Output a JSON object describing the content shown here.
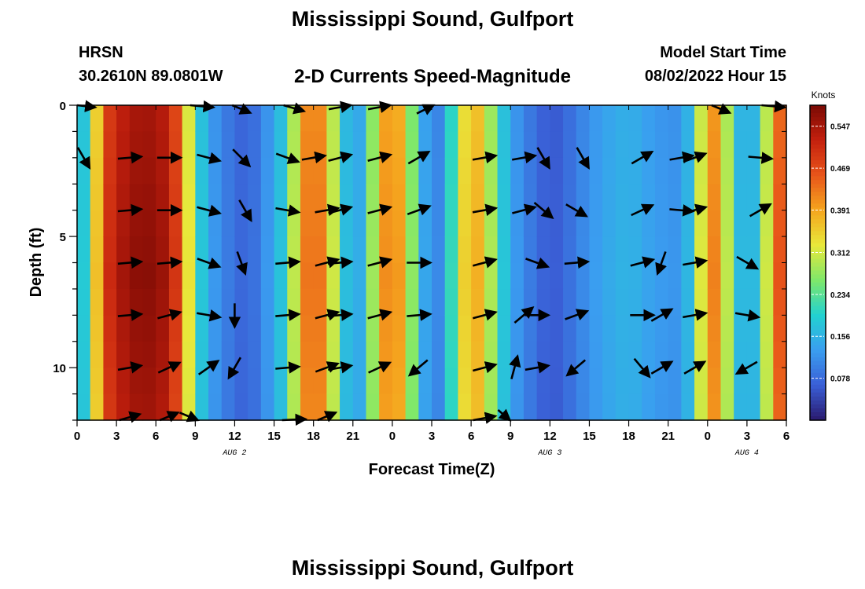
{
  "header": {
    "title": "Mississippi Sound, Gulfport",
    "station": "HRSN",
    "coordinates": "30.2610N  89.0801W",
    "product": "2-D Currents Speed-Magnitude",
    "model_start_label": "Model Start Time",
    "model_start_value": "08/02/2022 Hour 15",
    "bottom_title": "Mississippi Sound, Gulfport"
  },
  "chart_data": {
    "type": "heatmap",
    "title": "2-D Currents Speed-Magnitude",
    "xlabel": "Forecast Time(Z)",
    "ylabel": "Depth (ft)",
    "x_range_hours": [
      0,
      54
    ],
    "ylim": [
      0,
      12
    ],
    "y_inverted": true,
    "x_tick_labels": [
      "0",
      "3",
      "6",
      "9",
      "12",
      "15",
      "18",
      "21",
      "0",
      "3",
      "6",
      "9",
      "12",
      "15",
      "18",
      "21",
      "0",
      "3",
      "6"
    ],
    "y_tick_values": [
      0,
      5,
      10
    ],
    "y_tick_labels": [
      "0",
      "5",
      "10"
    ],
    "date_labels": [
      {
        "label": "AUG 2",
        "hour": 12
      },
      {
        "label": "AUG 3",
        "hour": 36
      },
      {
        "label": "AUG 4",
        "hour": 51
      }
    ],
    "colorbar": {
      "title": "Knots",
      "range": [
        0.0,
        0.586
      ],
      "ticks": [
        0.547,
        0.469,
        0.391,
        0.312,
        0.234,
        0.156,
        0.078
      ],
      "tick_labels": [
        "0.547",
        "0.469",
        "0.391",
        "0.312",
        "0.234",
        "0.156",
        "0.078"
      ]
    },
    "speed_profile": [
      {
        "hour": 0,
        "value": 0.12
      },
      {
        "hour": 1,
        "value": 0.25
      },
      {
        "hour": 2,
        "value": 0.48
      },
      {
        "hour": 3,
        "value": 0.54
      },
      {
        "hour": 5,
        "value": 0.58
      },
      {
        "hour": 7,
        "value": 0.55
      },
      {
        "hour": 8,
        "value": 0.44
      },
      {
        "hour": 9,
        "value": 0.22
      },
      {
        "hour": 10,
        "value": 0.14
      },
      {
        "hour": 12,
        "value": 0.08
      },
      {
        "hour": 13,
        "value": 0.07
      },
      {
        "hour": 14,
        "value": 0.1
      },
      {
        "hour": 16,
        "value": 0.2
      },
      {
        "hour": 17,
        "value": 0.4
      },
      {
        "hour": 18,
        "value": 0.46
      },
      {
        "hour": 19,
        "value": 0.4
      },
      {
        "hour": 20,
        "value": 0.22
      },
      {
        "hour": 21,
        "value": 0.12
      },
      {
        "hour": 22,
        "value": 0.18
      },
      {
        "hour": 23,
        "value": 0.38
      },
      {
        "hour": 24,
        "value": 0.44
      },
      {
        "hour": 25,
        "value": 0.36
      },
      {
        "hour": 26,
        "value": 0.18
      },
      {
        "hour": 27,
        "value": 0.1
      },
      {
        "hour": 28,
        "value": 0.12
      },
      {
        "hour": 29,
        "value": 0.3
      },
      {
        "hour": 30,
        "value": 0.4
      },
      {
        "hour": 31,
        "value": 0.36
      },
      {
        "hour": 32,
        "value": 0.22
      },
      {
        "hour": 33,
        "value": 0.14
      },
      {
        "hour": 35,
        "value": 0.08
      },
      {
        "hour": 36,
        "value": 0.06
      },
      {
        "hour": 37,
        "value": 0.07
      },
      {
        "hour": 38,
        "value": 0.1
      },
      {
        "hour": 40,
        "value": 0.14
      },
      {
        "hour": 42,
        "value": 0.16
      },
      {
        "hour": 44,
        "value": 0.13
      },
      {
        "hour": 46,
        "value": 0.12
      },
      {
        "hour": 47,
        "value": 0.2
      },
      {
        "hour": 48,
        "value": 0.44
      },
      {
        "hour": 49,
        "value": 0.4
      },
      {
        "hour": 50,
        "value": 0.2
      },
      {
        "hour": 51,
        "value": 0.13
      },
      {
        "hour": 52,
        "value": 0.2
      },
      {
        "hour": 53,
        "value": 0.42
      },
      {
        "hour": 54,
        "value": 0.5
      }
    ],
    "color_stops": [
      "#2a1a6e",
      "#3a5fd6",
      "#3a9ef0",
      "#22d2d0",
      "#7fe86a",
      "#e8e83a",
      "#f5a51e",
      "#e8551a",
      "#c4200e",
      "#7a0a04"
    ],
    "vector_depths_ft": [
      0,
      2,
      4,
      6,
      8,
      10,
      12
    ],
    "vectors": [
      {
        "hour": 0.5,
        "depth": 0,
        "angle": 10
      },
      {
        "hour": 9.5,
        "depth": 0,
        "angle": 10
      },
      {
        "hour": 12.5,
        "depth": 0,
        "angle": 40
      },
      {
        "hour": 16.5,
        "depth": 0,
        "angle": 30
      },
      {
        "hour": 20,
        "depth": 0,
        "angle": -20
      },
      {
        "hour": 23,
        "depth": 0,
        "angle": -20
      },
      {
        "hour": 26.5,
        "depth": 0,
        "angle": -45
      },
      {
        "hour": 49,
        "depth": 0,
        "angle": 40
      },
      {
        "hour": 53,
        "depth": 0,
        "angle": 10
      },
      {
        "hour": 0.5,
        "depth": 2,
        "angle": 60
      },
      {
        "hour": 4,
        "depth": 2,
        "angle": -5
      },
      {
        "hour": 7,
        "depth": 2,
        "angle": 0
      },
      {
        "hour": 10,
        "depth": 2,
        "angle": 15
      },
      {
        "hour": 12.5,
        "depth": 2,
        "angle": 45
      },
      {
        "hour": 16,
        "depth": 2,
        "angle": 20
      },
      {
        "hour": 18,
        "depth": 2,
        "angle": -10
      },
      {
        "hour": 20,
        "depth": 2,
        "angle": -15
      },
      {
        "hour": 23,
        "depth": 2,
        "angle": -15
      },
      {
        "hour": 26,
        "depth": 2,
        "angle": -30
      },
      {
        "hour": 31,
        "depth": 2,
        "angle": -10
      },
      {
        "hour": 34,
        "depth": 2,
        "angle": -10
      },
      {
        "hour": 35.5,
        "depth": 2,
        "angle": 60
      },
      {
        "hour": 38.5,
        "depth": 2,
        "angle": 60
      },
      {
        "hour": 43,
        "depth": 2,
        "angle": -30
      },
      {
        "hour": 46,
        "depth": 2,
        "angle": -10
      },
      {
        "hour": 47,
        "depth": 2,
        "angle": -20
      },
      {
        "hour": 52,
        "depth": 2,
        "angle": 5
      },
      {
        "hour": 4,
        "depth": 4,
        "angle": -5
      },
      {
        "hour": 7,
        "depth": 4,
        "angle": 0
      },
      {
        "hour": 10,
        "depth": 4,
        "angle": 15
      },
      {
        "hour": 12.8,
        "depth": 4,
        "angle": 60
      },
      {
        "hour": 16,
        "depth": 4,
        "angle": 10
      },
      {
        "hour": 19,
        "depth": 4,
        "angle": -10
      },
      {
        "hour": 20,
        "depth": 4,
        "angle": -15
      },
      {
        "hour": 23,
        "depth": 4,
        "angle": -15
      },
      {
        "hour": 26,
        "depth": 4,
        "angle": -20
      },
      {
        "hour": 31,
        "depth": 4,
        "angle": -10
      },
      {
        "hour": 34,
        "depth": 4,
        "angle": -15
      },
      {
        "hour": 35.5,
        "depth": 4,
        "angle": 40
      },
      {
        "hour": 38,
        "depth": 4,
        "angle": 30
      },
      {
        "hour": 43,
        "depth": 4,
        "angle": -25
      },
      {
        "hour": 46,
        "depth": 4,
        "angle": 5
      },
      {
        "hour": 47,
        "depth": 4,
        "angle": -15
      },
      {
        "hour": 52,
        "depth": 4,
        "angle": -30
      },
      {
        "hour": 4,
        "depth": 6,
        "angle": -5
      },
      {
        "hour": 7,
        "depth": 6,
        "angle": -5
      },
      {
        "hour": 10,
        "depth": 6,
        "angle": 20
      },
      {
        "hour": 12.5,
        "depth": 6,
        "angle": 70
      },
      {
        "hour": 16,
        "depth": 6,
        "angle": -5
      },
      {
        "hour": 19,
        "depth": 6,
        "angle": -15
      },
      {
        "hour": 20,
        "depth": 6,
        "angle": -5
      },
      {
        "hour": 23,
        "depth": 6,
        "angle": -15
      },
      {
        "hour": 26,
        "depth": 6,
        "angle": 0
      },
      {
        "hour": 31,
        "depth": 6,
        "angle": -15
      },
      {
        "hour": 35,
        "depth": 6,
        "angle": 20
      },
      {
        "hour": 38,
        "depth": 6,
        "angle": -5
      },
      {
        "hour": 43,
        "depth": 6,
        "angle": -15
      },
      {
        "hour": 44.5,
        "depth": 6,
        "angle": 110
      },
      {
        "hour": 47,
        "depth": 6,
        "angle": -10
      },
      {
        "hour": 51,
        "depth": 6,
        "angle": 30
      },
      {
        "hour": 4,
        "depth": 8,
        "angle": -5
      },
      {
        "hour": 7,
        "depth": 8,
        "angle": -15
      },
      {
        "hour": 10,
        "depth": 8,
        "angle": 10
      },
      {
        "hour": 12,
        "depth": 8,
        "angle": 90
      },
      {
        "hour": 16,
        "depth": 8,
        "angle": -5
      },
      {
        "hour": 19,
        "depth": 8,
        "angle": -15
      },
      {
        "hour": 20,
        "depth": 8,
        "angle": -5
      },
      {
        "hour": 23,
        "depth": 8,
        "angle": -15
      },
      {
        "hour": 26,
        "depth": 8,
        "angle": -5
      },
      {
        "hour": 31,
        "depth": 8,
        "angle": -15
      },
      {
        "hour": 34,
        "depth": 8,
        "angle": -40
      },
      {
        "hour": 35,
        "depth": 8,
        "angle": 0
      },
      {
        "hour": 38,
        "depth": 8,
        "angle": -20
      },
      {
        "hour": 43,
        "depth": 8,
        "angle": 0
      },
      {
        "hour": 44.5,
        "depth": 8,
        "angle": -30
      },
      {
        "hour": 47,
        "depth": 8,
        "angle": -10
      },
      {
        "hour": 51,
        "depth": 8,
        "angle": 10
      },
      {
        "hour": 4,
        "depth": 10,
        "angle": -10
      },
      {
        "hour": 7,
        "depth": 10,
        "angle": -25
      },
      {
        "hour": 10,
        "depth": 10,
        "angle": -35
      },
      {
        "hour": 12,
        "depth": 10,
        "angle": 120
      },
      {
        "hour": 16,
        "depth": 10,
        "angle": -5
      },
      {
        "hour": 19,
        "depth": 10,
        "angle": -20
      },
      {
        "hour": 20,
        "depth": 10,
        "angle": -10
      },
      {
        "hour": 23,
        "depth": 10,
        "angle": -25
      },
      {
        "hour": 26,
        "depth": 10,
        "angle": 140
      },
      {
        "hour": 31,
        "depth": 10,
        "angle": -15
      },
      {
        "hour": 33.3,
        "depth": 10,
        "angle": -75
      },
      {
        "hour": 35,
        "depth": 10,
        "angle": -10
      },
      {
        "hour": 38,
        "depth": 10,
        "angle": 140
      },
      {
        "hour": 43,
        "depth": 10,
        "angle": 50
      },
      {
        "hour": 44.5,
        "depth": 10,
        "angle": -30
      },
      {
        "hour": 47,
        "depth": 10,
        "angle": -30
      },
      {
        "hour": 51,
        "depth": 10,
        "angle": 150
      },
      {
        "hour": 4,
        "depth": 12,
        "angle": -30
      },
      {
        "hour": 7,
        "depth": 12,
        "angle": -40
      },
      {
        "hour": 8.5,
        "depth": 12,
        "angle": 40
      },
      {
        "hour": 16.5,
        "depth": 12,
        "angle": -5
      },
      {
        "hour": 19,
        "depth": 12,
        "angle": -40
      },
      {
        "hour": 31,
        "depth": 12,
        "angle": -20
      },
      {
        "hour": 32.5,
        "depth": 12,
        "angle": 60
      }
    ]
  }
}
